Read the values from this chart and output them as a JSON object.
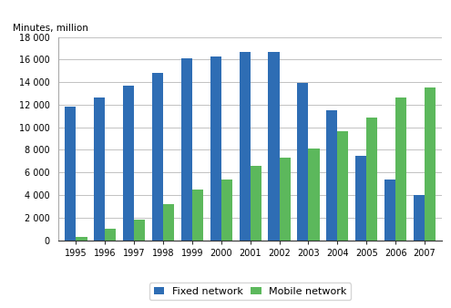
{
  "years": [
    1995,
    1996,
    1997,
    1998,
    1999,
    2000,
    2001,
    2002,
    2003,
    2004,
    2005,
    2006,
    2007
  ],
  "fixed_network": [
    11800,
    12600,
    13700,
    14800,
    16100,
    16300,
    16700,
    16700,
    13900,
    11500,
    7500,
    5400,
    4000
  ],
  "mobile_network": [
    300,
    1000,
    1850,
    3200,
    4500,
    5350,
    6550,
    7300,
    8100,
    9650,
    10900,
    12600,
    13500
  ],
  "fixed_color": "#2E6DB4",
  "mobile_color": "#5CB85C",
  "ylabel": "Minutes, million",
  "ylim": [
    0,
    18000
  ],
  "yticks": [
    0,
    2000,
    4000,
    6000,
    8000,
    10000,
    12000,
    14000,
    16000,
    18000
  ],
  "legend_labels": [
    "Fixed network",
    "Mobile network"
  ],
  "bar_width": 0.38,
  "background_color": "#ffffff"
}
